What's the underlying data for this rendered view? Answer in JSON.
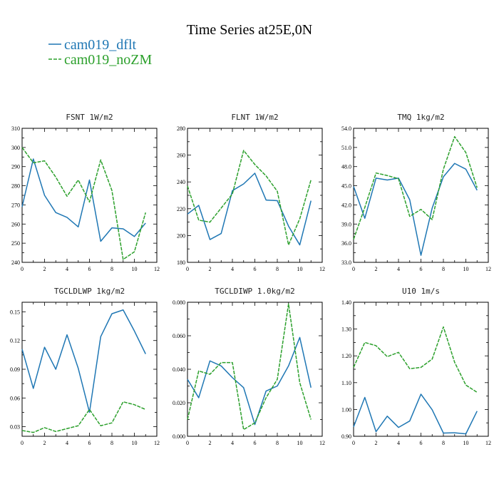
{
  "figure": {
    "title": "Time Series at25E,0N"
  },
  "legend": [
    {
      "name": "cam019_dflt",
      "color": "#1f77b4",
      "dash": "solid"
    },
    {
      "name": "cam019_noZM",
      "color": "#2ca02c",
      "dash": "dashed"
    }
  ],
  "chart_data": [
    {
      "type": "line",
      "title": "FSNT   1W/m2",
      "x": [
        0,
        1,
        2,
        3,
        4,
        5,
        6,
        7,
        8,
        9,
        10,
        11
      ],
      "xlim": [
        0,
        12
      ],
      "xticks": [
        0,
        2,
        4,
        6,
        8,
        10,
        12
      ],
      "ylim": [
        240,
        310
      ],
      "yticks": [
        240,
        250,
        260,
        270,
        280,
        290,
        300,
        310
      ],
      "ytick_labels": [
        "240",
        "250",
        "260",
        "270",
        "280",
        "290",
        "300",
        "310"
      ],
      "series": [
        {
          "name": "cam019_dflt",
          "values": [
            269,
            294,
            275,
            266,
            263.5,
            258.5,
            283,
            251,
            258,
            257.5,
            253.5,
            260.5
          ]
        },
        {
          "name": "cam019_noZM",
          "values": [
            300,
            292,
            293,
            284.5,
            274.5,
            283,
            271.5,
            293.5,
            277.5,
            241.5,
            245.5,
            266
          ]
        }
      ]
    },
    {
      "type": "line",
      "title": "FLNT   1W/m2",
      "x": [
        0,
        1,
        2,
        3,
        4,
        5,
        6,
        7,
        8,
        9,
        10,
        11
      ],
      "xlim": [
        0,
        12
      ],
      "xticks": [
        0,
        2,
        4,
        6,
        8,
        10,
        12
      ],
      "ylim": [
        180,
        280
      ],
      "yticks": [
        180,
        200,
        220,
        240,
        260,
        280
      ],
      "ytick_labels": [
        "180",
        "200",
        "220",
        "240",
        "260",
        "280"
      ],
      "series": [
        {
          "name": "cam019_dflt",
          "values": [
            216,
            222.5,
            197,
            201.5,
            233.5,
            238.5,
            246.5,
            226.5,
            226,
            207,
            193,
            226
          ]
        },
        {
          "name": "cam019_noZM",
          "values": [
            237,
            211.5,
            210,
            220.5,
            231,
            263.5,
            253,
            244.5,
            233,
            193,
            212.5,
            241.5
          ]
        }
      ]
    },
    {
      "type": "line",
      "title": "TMQ   1kg/m2",
      "x": [
        0,
        1,
        2,
        3,
        4,
        5,
        6,
        7,
        8,
        9,
        10,
        11
      ],
      "xlim": [
        0,
        12
      ],
      "xticks": [
        0,
        2,
        4,
        6,
        8,
        10,
        12
      ],
      "ylim": [
        33.0,
        54.0
      ],
      "yticks": [
        33,
        36,
        39,
        42,
        45,
        48,
        51,
        54
      ],
      "ytick_labels": [
        "33.0",
        "36.0",
        "39.0",
        "42.0",
        "45.0",
        "48.0",
        "51.0",
        "54.0"
      ],
      "series": [
        {
          "name": "cam019_dflt",
          "values": [
            44.9,
            39.9,
            46.2,
            45.9,
            46.2,
            42.8,
            34.1,
            41.5,
            46.4,
            48.5,
            47.6,
            44.3
          ]
        },
        {
          "name": "cam019_noZM",
          "values": [
            36.6,
            41.6,
            47.0,
            46.6,
            46.1,
            40.2,
            41.3,
            39.7,
            47.6,
            52.7,
            50.2,
            44.7
          ]
        }
      ]
    },
    {
      "type": "line",
      "title": "TGCLDLWP   1kg/m2",
      "x": [
        0,
        1,
        2,
        3,
        4,
        5,
        6,
        7,
        8,
        9,
        10,
        11
      ],
      "xlim": [
        0,
        12
      ],
      "xticks": [
        0,
        2,
        4,
        6,
        8,
        10,
        12
      ],
      "ylim": [
        0.02,
        0.16
      ],
      "yticks": [
        0.03,
        0.06,
        0.09,
        0.12,
        0.15
      ],
      "ytick_labels": [
        "0.03",
        "0.06",
        "0.09",
        "0.12",
        "0.15"
      ],
      "series": [
        {
          "name": "cam019_dflt",
          "values": [
            0.111,
            0.07,
            0.113,
            0.09,
            0.126,
            0.091,
            0.045,
            0.124,
            0.148,
            0.152,
            0.13,
            0.106
          ]
        },
        {
          "name": "cam019_noZM",
          "values": [
            0.026,
            0.024,
            0.029,
            0.025,
            0.028,
            0.031,
            0.048,
            0.031,
            0.034,
            0.056,
            0.053,
            0.048
          ]
        }
      ]
    },
    {
      "type": "line",
      "title": "TGCLDIWP   1.0kg/m2",
      "x": [
        0,
        1,
        2,
        3,
        4,
        5,
        6,
        7,
        8,
        9,
        10,
        11
      ],
      "xlim": [
        0,
        12
      ],
      "xticks": [
        0,
        2,
        4,
        6,
        8,
        10,
        12
      ],
      "ylim": [
        0.0,
        0.08
      ],
      "yticks": [
        0,
        0.02,
        0.04,
        0.06,
        0.08
      ],
      "ytick_labels": [
        "0.000",
        "0.020",
        "0.040",
        "0.060",
        "0.080"
      ],
      "series": [
        {
          "name": "cam019_dflt",
          "values": [
            0.034,
            0.023,
            0.045,
            0.042,
            0.035,
            0.029,
            0.007,
            0.027,
            0.03,
            0.042,
            0.059,
            0.029
          ]
        },
        {
          "name": "cam019_noZM",
          "values": [
            0.01,
            0.039,
            0.037,
            0.044,
            0.044,
            0.004,
            0.008,
            0.023,
            0.034,
            0.079,
            0.032,
            0.01
          ]
        }
      ]
    },
    {
      "type": "line",
      "title": "U10   1m/s",
      "x": [
        0,
        1,
        2,
        3,
        4,
        5,
        6,
        7,
        8,
        9,
        10,
        11
      ],
      "xlim": [
        0,
        12
      ],
      "xticks": [
        0,
        2,
        4,
        6,
        8,
        10,
        12
      ],
      "ylim": [
        0.9,
        1.4
      ],
      "yticks": [
        0.9,
        1.0,
        1.1,
        1.2,
        1.3,
        1.4
      ],
      "ytick_labels": [
        "0.90",
        "1.00",
        "1.10",
        "1.20",
        "1.30",
        "1.40"
      ],
      "series": [
        {
          "name": "cam019_dflt",
          "values": [
            0.935,
            1.045,
            0.917,
            0.975,
            0.933,
            0.957,
            1.057,
            0.999,
            0.912,
            0.913,
            0.909,
            0.994
          ]
        },
        {
          "name": "cam019_noZM",
          "values": [
            1.157,
            1.25,
            1.238,
            1.197,
            1.213,
            1.152,
            1.157,
            1.188,
            1.308,
            1.176,
            1.091,
            1.064
          ]
        }
      ]
    }
  ]
}
